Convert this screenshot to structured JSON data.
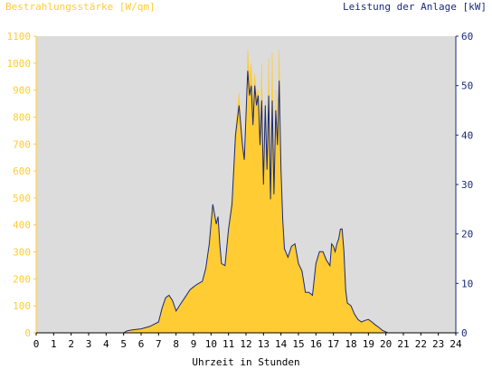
{
  "chart_data": {
    "type": "area",
    "ylabel_left": "Bestrahlungsstärke [W/qm]",
    "ylabel_right": "Leistung der Anlage [kW]",
    "xlabel": "Uhrzeit in Stunden",
    "x_ticks": [
      "0",
      "1",
      "2",
      "3",
      "4",
      "5",
      "6",
      "7",
      "8",
      "9",
      "10",
      "11",
      "12",
      "13",
      "14",
      "15",
      "16",
      "17",
      "18",
      "19",
      "20",
      "21",
      "22",
      "23",
      "24"
    ],
    "y_left_ticks": [
      "0",
      "100",
      "200",
      "300",
      "400",
      "500",
      "600",
      "700",
      "800",
      "900",
      "1000",
      "1100"
    ],
    "y_right_ticks": [
      "0",
      "10",
      "20",
      "30",
      "40",
      "50",
      "60"
    ],
    "xlim": [
      0,
      24
    ],
    "ylim_left": [
      0,
      1100
    ],
    "ylim_right": [
      0,
      60
    ],
    "grid": false,
    "colors": {
      "irradiance": "#ffcc33",
      "power": "#1a2a7a",
      "plot_bg": "#dcdcdc",
      "left_axis": "#ffcc33",
      "right_axis": "#1a2a7a"
    },
    "series": [
      {
        "name": "Bestrahlungsstärke [W/qm]",
        "axis": "left",
        "x": [
          0,
          5,
          5.2,
          5.5,
          6,
          6.5,
          7,
          7.2,
          7.4,
          7.6,
          7.8,
          8,
          8.2,
          8.5,
          8.8,
          9,
          9.2,
          9.5,
          9.7,
          9.9,
          10,
          10.1,
          10.2,
          10.3,
          10.4,
          10.5,
          10.6,
          10.8,
          11,
          11.2,
          11.4,
          11.6,
          11.8,
          11.9,
          12,
          12.05,
          12.1,
          12.2,
          12.3,
          12.4,
          12.5,
          12.6,
          12.7,
          12.8,
          12.9,
          13,
          13.1,
          13.2,
          13.3,
          13.4,
          13.5,
          13.6,
          13.7,
          13.8,
          13.9,
          14,
          14.1,
          14.2,
          14.4,
          14.6,
          14.8,
          15,
          15.2,
          15.4,
          15.6,
          15.8,
          16,
          16.2,
          16.4,
          16.6,
          16.8,
          16.9,
          17,
          17.1,
          17.2,
          17.3,
          17.4,
          17.5,
          17.6,
          17.7,
          17.8,
          18,
          18.2,
          18.4,
          18.6,
          18.8,
          19,
          19.2,
          19.4,
          19.6,
          19.8,
          20,
          20.1,
          20.2,
          24
        ],
        "y": [
          0,
          0,
          8,
          12,
          15,
          25,
          40,
          90,
          130,
          140,
          120,
          80,
          100,
          130,
          160,
          170,
          180,
          190,
          240,
          330,
          400,
          470,
          440,
          400,
          430,
          330,
          260,
          250,
          390,
          500,
          750,
          890,
          700,
          650,
          800,
          900,
          1050,
          950,
          1000,
          850,
          960,
          880,
          900,
          700,
          1000,
          550,
          860,
          600,
          1020,
          480,
          1040,
          520,
          900,
          700,
          1050,
          600,
          400,
          300,
          280,
          320,
          330,
          260,
          230,
          150,
          150,
          140,
          260,
          300,
          300,
          270,
          250,
          330,
          320,
          300,
          330,
          350,
          380,
          390,
          300,
          160,
          110,
          100,
          70,
          50,
          40,
          45,
          50,
          40,
          30,
          20,
          10,
          5,
          0,
          0,
          0
        ]
      },
      {
        "name": "Leistung der Anlage [kW]",
        "axis": "right",
        "x": [
          0,
          5,
          5.2,
          5.5,
          6,
          6.5,
          7,
          7.2,
          7.4,
          7.6,
          7.8,
          8,
          8.2,
          8.5,
          8.8,
          9,
          9.2,
          9.5,
          9.7,
          9.9,
          10,
          10.1,
          10.2,
          10.3,
          10.4,
          10.5,
          10.6,
          10.8,
          11,
          11.2,
          11.4,
          11.6,
          11.8,
          11.9,
          12,
          12.05,
          12.1,
          12.2,
          12.3,
          12.4,
          12.5,
          12.6,
          12.7,
          12.8,
          12.9,
          13,
          13.1,
          13.2,
          13.3,
          13.4,
          13.5,
          13.6,
          13.7,
          13.8,
          13.9,
          14,
          14.1,
          14.2,
          14.4,
          14.6,
          14.8,
          15,
          15.2,
          15.4,
          15.6,
          15.8,
          16,
          16.2,
          16.4,
          16.6,
          16.8,
          16.9,
          17,
          17.1,
          17.2,
          17.3,
          17.4,
          17.5,
          17.6,
          17.7,
          17.8,
          18,
          18.2,
          18.4,
          18.6,
          18.8,
          19,
          19.2,
          19.4,
          19.6,
          19.8,
          20,
          20.1,
          20.2,
          24
        ],
        "y": [
          0,
          0,
          0.4,
          0.6,
          0.8,
          1.3,
          2.2,
          5,
          7.1,
          7.6,
          6.5,
          4.4,
          5.5,
          7.1,
          8.7,
          9.3,
          9.8,
          10.4,
          13,
          18,
          22,
          26,
          24,
          22,
          23.5,
          18,
          14,
          13.6,
          21,
          26,
          40,
          46,
          38,
          35,
          44,
          49,
          53,
          48,
          50,
          42,
          50,
          46,
          48,
          38,
          47,
          30,
          46,
          33,
          48,
          27,
          47,
          28,
          45,
          38,
          51,
          33,
          23,
          17,
          15.3,
          17.5,
          18,
          14,
          12.5,
          8.2,
          8.2,
          7.6,
          14,
          16.4,
          16.4,
          14.7,
          13.6,
          18,
          17.5,
          16.4,
          18,
          19,
          21,
          21,
          16.4,
          8.7,
          6,
          5.5,
          3.8,
          2.7,
          2.2,
          2.5,
          2.7,
          2.2,
          1.6,
          1.1,
          0.5,
          0.2,
          0,
          0,
          0
        ]
      }
    ]
  }
}
